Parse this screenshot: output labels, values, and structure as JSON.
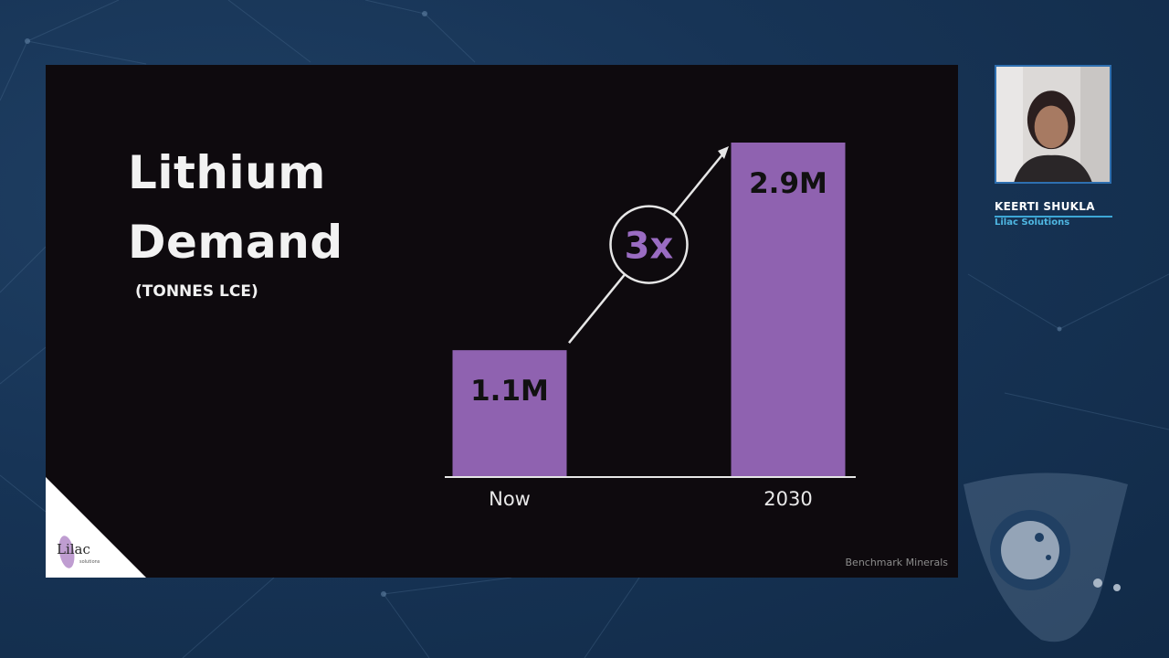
{
  "slide": {
    "title_line1": "Lithium",
    "title_line2": "Demand",
    "subtitle": "(TONNES LCE)",
    "source": "Benchmark Minerals",
    "logo_text": "Lilac",
    "logo_subtext": "solutions"
  },
  "chart_data": {
    "type": "bar",
    "categories": [
      "Now",
      "2030"
    ],
    "values": [
      1.1,
      2.9
    ],
    "value_labels": [
      "1.1M",
      "2.9M"
    ],
    "ylim": [
      0,
      2.9
    ],
    "multiplier_label": "3x",
    "title": "",
    "xlabel": "",
    "ylabel": "",
    "grid": false,
    "bar_color": "#8f62b0",
    "baseline_color": "#e6e6e6"
  },
  "speaker": {
    "name": "KEERTI SHUKLA",
    "organization": "Lilac Solutions"
  },
  "colors": {
    "background": "#173456",
    "slide_background": "#0e0a0e",
    "accent_blue": "#3da7d6",
    "accent_purple": "#9a6cc2"
  }
}
